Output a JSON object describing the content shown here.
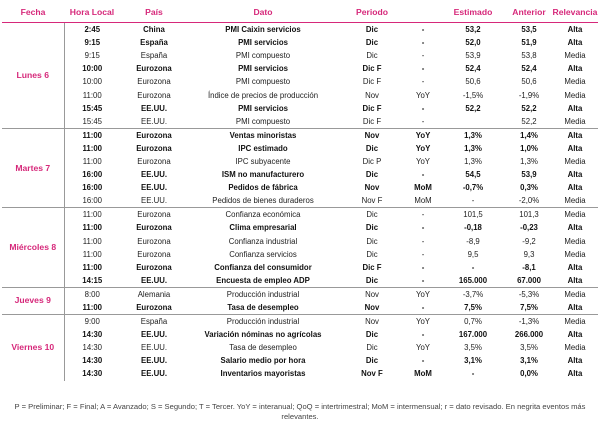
{
  "headers": [
    "Fecha",
    "Hora Local",
    "País",
    "Dato",
    "Periodo",
    "",
    "Estimado",
    "Anterior",
    "Relevancia"
  ],
  "days": [
    {
      "label": "Lunes 6",
      "rows": [
        {
          "bold": true,
          "hora": "2:45",
          "pais": "China",
          "dato": "PMI Caixin servicios",
          "periodo": "Dic",
          "comp": "-",
          "est": "53,2",
          "ant": "53,5",
          "rel": "Alta"
        },
        {
          "bold": true,
          "hora": "9:15",
          "pais": "España",
          "dato": "PMI servicios",
          "periodo": "Dic",
          "comp": "-",
          "est": "52,0",
          "ant": "51,9",
          "rel": "Alta"
        },
        {
          "bold": false,
          "hora": "9:15",
          "pais": "España",
          "dato": "PMI compuesto",
          "periodo": "Dic",
          "comp": "-",
          "est": "53,9",
          "ant": "53,8",
          "rel": "Media"
        },
        {
          "bold": true,
          "hora": "10:00",
          "pais": "Eurozona",
          "dato": "PMI servicios",
          "periodo": "Dic F",
          "comp": "-",
          "est": "52,4",
          "ant": "52,4",
          "rel": "Alta"
        },
        {
          "bold": false,
          "hora": "10:00",
          "pais": "Eurozona",
          "dato": "PMI compuesto",
          "periodo": "Dic F",
          "comp": "-",
          "est": "50,6",
          "ant": "50,6",
          "rel": "Media"
        },
        {
          "bold": false,
          "hora": "11:00",
          "pais": "Eurozona",
          "dato": "Índice de precios de producción",
          "periodo": "Nov",
          "comp": "YoY",
          "est": "-1,5%",
          "ant": "-1,9%",
          "rel": "Media"
        },
        {
          "bold": true,
          "hora": "15:45",
          "pais": "EE.UU.",
          "dato": "PMI servicios",
          "periodo": "Dic F",
          "comp": "-",
          "est": "52,2",
          "ant": "52,2",
          "rel": "Alta"
        },
        {
          "bold": false,
          "hora": "15:45",
          "pais": "EE.UU.",
          "dato": "PMI compuesto",
          "periodo": "Dic F",
          "comp": "-",
          "est": "",
          "ant": "52,2",
          "rel": "Media"
        }
      ]
    },
    {
      "label": "Martes 7",
      "rows": [
        {
          "bold": true,
          "hora": "11:00",
          "pais": "Eurozona",
          "dato": "Ventas minoristas",
          "periodo": "Nov",
          "comp": "YoY",
          "est": "1,3%",
          "ant": "1,4%",
          "rel": "Alta"
        },
        {
          "bold": true,
          "hora": "11:00",
          "pais": "Eurozona",
          "dato": "IPC estimado",
          "periodo": "Dic",
          "comp": "YoY",
          "est": "1,3%",
          "ant": "1,0%",
          "rel": "Alta"
        },
        {
          "bold": false,
          "hora": "11:00",
          "pais": "Eurozona",
          "dato": "IPC subyacente",
          "periodo": "Dic P",
          "comp": "YoY",
          "est": "1,3%",
          "ant": "1,3%",
          "rel": "Media"
        },
        {
          "bold": true,
          "hora": "16:00",
          "pais": "EE.UU.",
          "dato": "ISM no manufacturero",
          "periodo": "Dic",
          "comp": "-",
          "est": "54,5",
          "ant": "53,9",
          "rel": "Alta"
        },
        {
          "bold": true,
          "hora": "16:00",
          "pais": "EE.UU.",
          "dato": "Pedidos de fábrica",
          "periodo": "Nov",
          "comp": "MoM",
          "est": "-0,7%",
          "ant": "0,3%",
          "rel": "Alta"
        },
        {
          "bold": false,
          "hora": "16:00",
          "pais": "EE.UU.",
          "dato": "Pedidos de bienes duraderos",
          "periodo": "Nov F",
          "comp": "MoM",
          "est": "-",
          "ant": "-2,0%",
          "rel": "Media"
        }
      ]
    },
    {
      "label": "Miércoles 8",
      "rows": [
        {
          "bold": false,
          "hora": "11:00",
          "pais": "Eurozona",
          "dato": "Confianza económica",
          "periodo": "Dic",
          "comp": "-",
          "est": "101,5",
          "ant": "101,3",
          "rel": "Media"
        },
        {
          "bold": true,
          "hora": "11:00",
          "pais": "Eurozona",
          "dato": "Clima empresarial",
          "periodo": "Dic",
          "comp": "-",
          "est": "-0,18",
          "ant": "-0,23",
          "rel": "Alta"
        },
        {
          "bold": false,
          "hora": "11:00",
          "pais": "Eurozona",
          "dato": "Confianza industrial",
          "periodo": "Dic",
          "comp": "-",
          "est": "-8,9",
          "ant": "-9,2",
          "rel": "Media"
        },
        {
          "bold": false,
          "hora": "11:00",
          "pais": "Eurozona",
          "dato": "Confianza servicios",
          "periodo": "Dic",
          "comp": "-",
          "est": "9,5",
          "ant": "9,3",
          "rel": "Media"
        },
        {
          "bold": true,
          "hora": "11:00",
          "pais": "Eurozona",
          "dato": "Confianza del consumidor",
          "periodo": "Dic F",
          "comp": "-",
          "est": "-",
          "ant": "-8,1",
          "rel": "Alta"
        },
        {
          "bold": true,
          "hora": "14:15",
          "pais": "EE.UU.",
          "dato": "Encuesta de empleo ADP",
          "periodo": "Dic",
          "comp": "-",
          "est": "165.000",
          "ant": "67.000",
          "rel": "Alta"
        }
      ]
    },
    {
      "label": "Jueves 9",
      "rows": [
        {
          "bold": false,
          "hora": "8:00",
          "pais": "Alemania",
          "dato": "Producción industrial",
          "periodo": "Nov",
          "comp": "YoY",
          "est": "-3,7%",
          "ant": "-5,3%",
          "rel": "Media"
        },
        {
          "bold": true,
          "hora": "11:00",
          "pais": "Eurozona",
          "dato": "Tasa de desempleo",
          "periodo": "Nov",
          "comp": "-",
          "est": "7,5%",
          "ant": "7,5%",
          "rel": "Alta"
        }
      ]
    },
    {
      "label": "Viernes 10",
      "rows": [
        {
          "bold": false,
          "hora": "9:00",
          "pais": "España",
          "dato": "Producción industrial",
          "periodo": "Nov",
          "comp": "YoY",
          "est": "0,7%",
          "ant": "-1,3%",
          "rel": "Media"
        },
        {
          "bold": true,
          "hora": "14:30",
          "pais": "EE.UU.",
          "dato": "Variación nóminas no agrícolas",
          "periodo": "Dic",
          "comp": "-",
          "est": "167.000",
          "ant": "266.000",
          "rel": "Alta"
        },
        {
          "bold": false,
          "hora": "14:30",
          "pais": "EE.UU.",
          "dato": "Tasa de desempleo",
          "periodo": "Dic",
          "comp": "YoY",
          "est": "3,5%",
          "ant": "3,5%",
          "rel": "Media"
        },
        {
          "bold": true,
          "hora": "14:30",
          "pais": "EE.UU.",
          "dato": "Salario medio por hora",
          "periodo": "Dic",
          "comp": "-",
          "est": "3,1%",
          "ant": "3,1%",
          "rel": "Alta"
        },
        {
          "bold": true,
          "hora": "14:30",
          "pais": "EE.UU.",
          "dato": "Inventarios mayoristas",
          "periodo": "Nov F",
          "comp": "MoM",
          "est": "-",
          "ant": "0,0%",
          "rel": "Alta"
        }
      ]
    }
  ],
  "footnote": "P = Preliminar; F = Final; A = Avanzado; S = Segundo; T = Tercer. YoY = interanual; QoQ = intertrimestral; MoM = intermensual; r = dato revisado. En negrita eventos más relevantes."
}
